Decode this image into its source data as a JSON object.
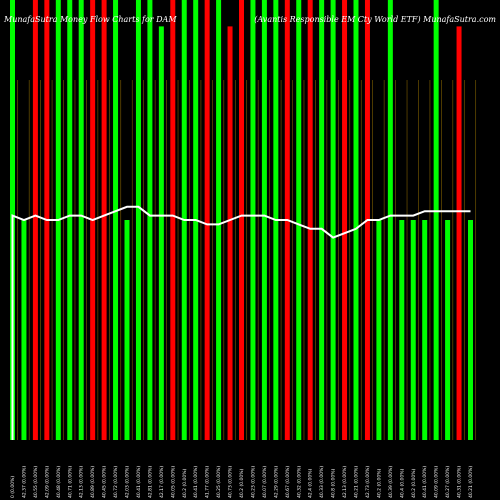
{
  "chart_data": {
    "type": "bar",
    "title_left": "MunafaSutra Money Flow Charts for DAM",
    "title_right": "(Avantis Responsible EM Cty World ETF) MunafaSutra.com",
    "x": [
      "Fri 04 Oct",
      "Thu 03 Oct",
      "Wed 02 Oct",
      "Tue 01 Oct",
      "Mon 30 Sep",
      "Fri 27 Sep",
      "Thu 26 Sep",
      "Wed 25 Sep",
      "Tue 24 Sep",
      "Mon 23 Sep",
      "Fri 20 Sep",
      "Thu 19 Sep",
      "Wed 18 Sep",
      "Tue 17 Sep",
      "Mon 16 Sep",
      "Fri 13 Sep",
      "Thu 12 Sep",
      "Wed 11 Sep",
      "Tue 10 Sep",
      "Mon 09 Sep",
      "Fri 06 Sep",
      "Thu 05 Sep",
      "Wed 04 Sep",
      "Tue 03 Sep",
      "Fri 30 Aug",
      "Thu 29 Aug",
      "Wed 28 Aug",
      "Tue 27 Aug",
      "Mon 26 Aug",
      "Fri 23 Aug",
      "Thu 22 Aug",
      "Wed 21 Aug",
      "Tue 20 Aug",
      "Mon 19 Aug",
      "Fri 16 Aug",
      "Thu 15 Aug",
      "Wed 14 Aug",
      "Tue 13 Aug",
      "Mon 12 Aug",
      "Fri 09 Aug",
      "Thu 08 Aug"
    ],
    "x_tick_labels": [
      "0 (0.00%)",
      "42.37 (0.00%)",
      "40.55 (0.00%)",
      "42.09 (0.00%)",
      "40.48 (0.00%)",
      "40.71 (0.00%)",
      "42.13 (0.00%)",
      "40.89 (0.00%)",
      "40.45 (0.00%)",
      "40.72 (0.00%)",
      "42.03 (0.00%)",
      "40.41 (0.00%)",
      "42.81 (0.00%)",
      "42.17 (0.00%)",
      "40.05 (0.00%)",
      "40.2 (0.00%)",
      "40.41 (0.00%)",
      "41.77 (0.00%)",
      "40.25 (0.00%)",
      "40.73 (0.00%)",
      "40.2 (0.00%)",
      "40.23 (0.00%)",
      "40.07 (0.00%)",
      "42.29 (0.00%)",
      "40.67 (0.00%)",
      "40.32 (0.00%)",
      "42.4 (0.00%)",
      "40.33 (0.00%)",
      "40.8 (0.00%)",
      "42.13 (0.00%)",
      "40.21 (0.00%)",
      "42.73 (0.00%)",
      "40.2 (0.00%)",
      "40.39 (0.00%)",
      "40.4 (0.00%)",
      "40.2 (0.00%)",
      "40.41 (0.00%)",
      "40.09 (0.00%)",
      "40.27 (0.00%)",
      "40.31 (0.00%)",
      "40.21 (0.00%)"
    ],
    "bar_heights_pct": [
      100,
      50,
      100,
      100,
      100,
      100,
      100,
      100,
      100,
      100,
      50,
      100,
      100,
      94,
      100,
      100,
      100,
      100,
      100,
      94,
      100,
      100,
      100,
      100,
      100,
      100,
      100,
      100,
      100,
      100,
      100,
      100,
      50,
      100,
      50,
      50,
      50,
      100,
      50,
      94,
      50
    ],
    "bar_colors": [
      "green",
      "green",
      "red",
      "red",
      "green",
      "green",
      "green",
      "red",
      "red",
      "green",
      "green",
      "green",
      "green",
      "green",
      "red",
      "green",
      "green",
      "red",
      "green",
      "red",
      "red",
      "green",
      "green",
      "green",
      "red",
      "green",
      "red",
      "green",
      "green",
      "red",
      "green",
      "red",
      "green",
      "green",
      "green",
      "green",
      "green",
      "green",
      "green",
      "red",
      "green"
    ],
    "line_values": [
      51,
      50,
      51,
      50,
      50,
      51,
      51,
      50,
      51,
      52,
      53,
      53,
      51,
      51,
      51,
      50,
      50,
      49,
      49,
      50,
      51,
      51,
      51,
      50,
      50,
      49,
      48,
      48,
      46,
      47,
      48,
      50,
      50,
      51,
      51,
      51,
      52,
      52,
      52,
      52,
      52
    ],
    "ylim": [
      0,
      100
    ],
    "grid": false,
    "legend": "none",
    "colors": {
      "green": "#00ff00",
      "red": "#ff0000",
      "line": "#ffffff",
      "grid_line": "#806000",
      "background": "#000000"
    }
  }
}
